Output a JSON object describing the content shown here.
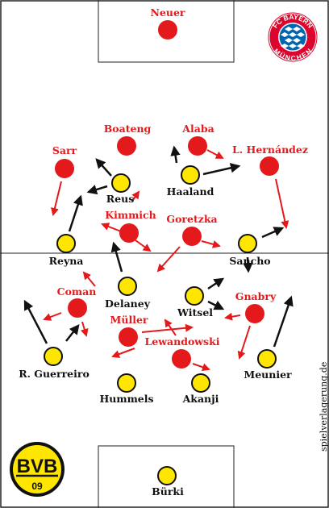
{
  "watermark": "spielverlagerung.de",
  "colors": {
    "bayern": "#e3191b",
    "dortmund": "#ffe600",
    "arrow_red": "#e3191b",
    "arrow_black": "#111111",
    "line": "#222222"
  },
  "logos": {
    "bayern": {
      "top": "FC BAYERN",
      "bottom": "MÜNCHEN"
    },
    "bvb": {
      "letters": "BVB",
      "year": "09"
    }
  },
  "players": {
    "neuer": "Neuer",
    "boateng": "Boateng",
    "alaba": "Alaba",
    "sarr": "Sarr",
    "hernandez": "L. Hernández",
    "kimmich": "Kimmich",
    "goretzka": "Goretzka",
    "coman": "Coman",
    "gnabry": "Gnabry",
    "muller": "Müller",
    "lewandowski": "Lewandowski",
    "reus": "Reus",
    "haaland": "Haaland",
    "reyna": "Reyna",
    "sancho": "Sancho",
    "delaney": "Delaney",
    "witsel": "Witsel",
    "guerreiro": "R. Guerreiro",
    "meunier": "Meunier",
    "hummels": "Hummels",
    "akanji": "Akanji",
    "burki": "Bürki"
  }
}
